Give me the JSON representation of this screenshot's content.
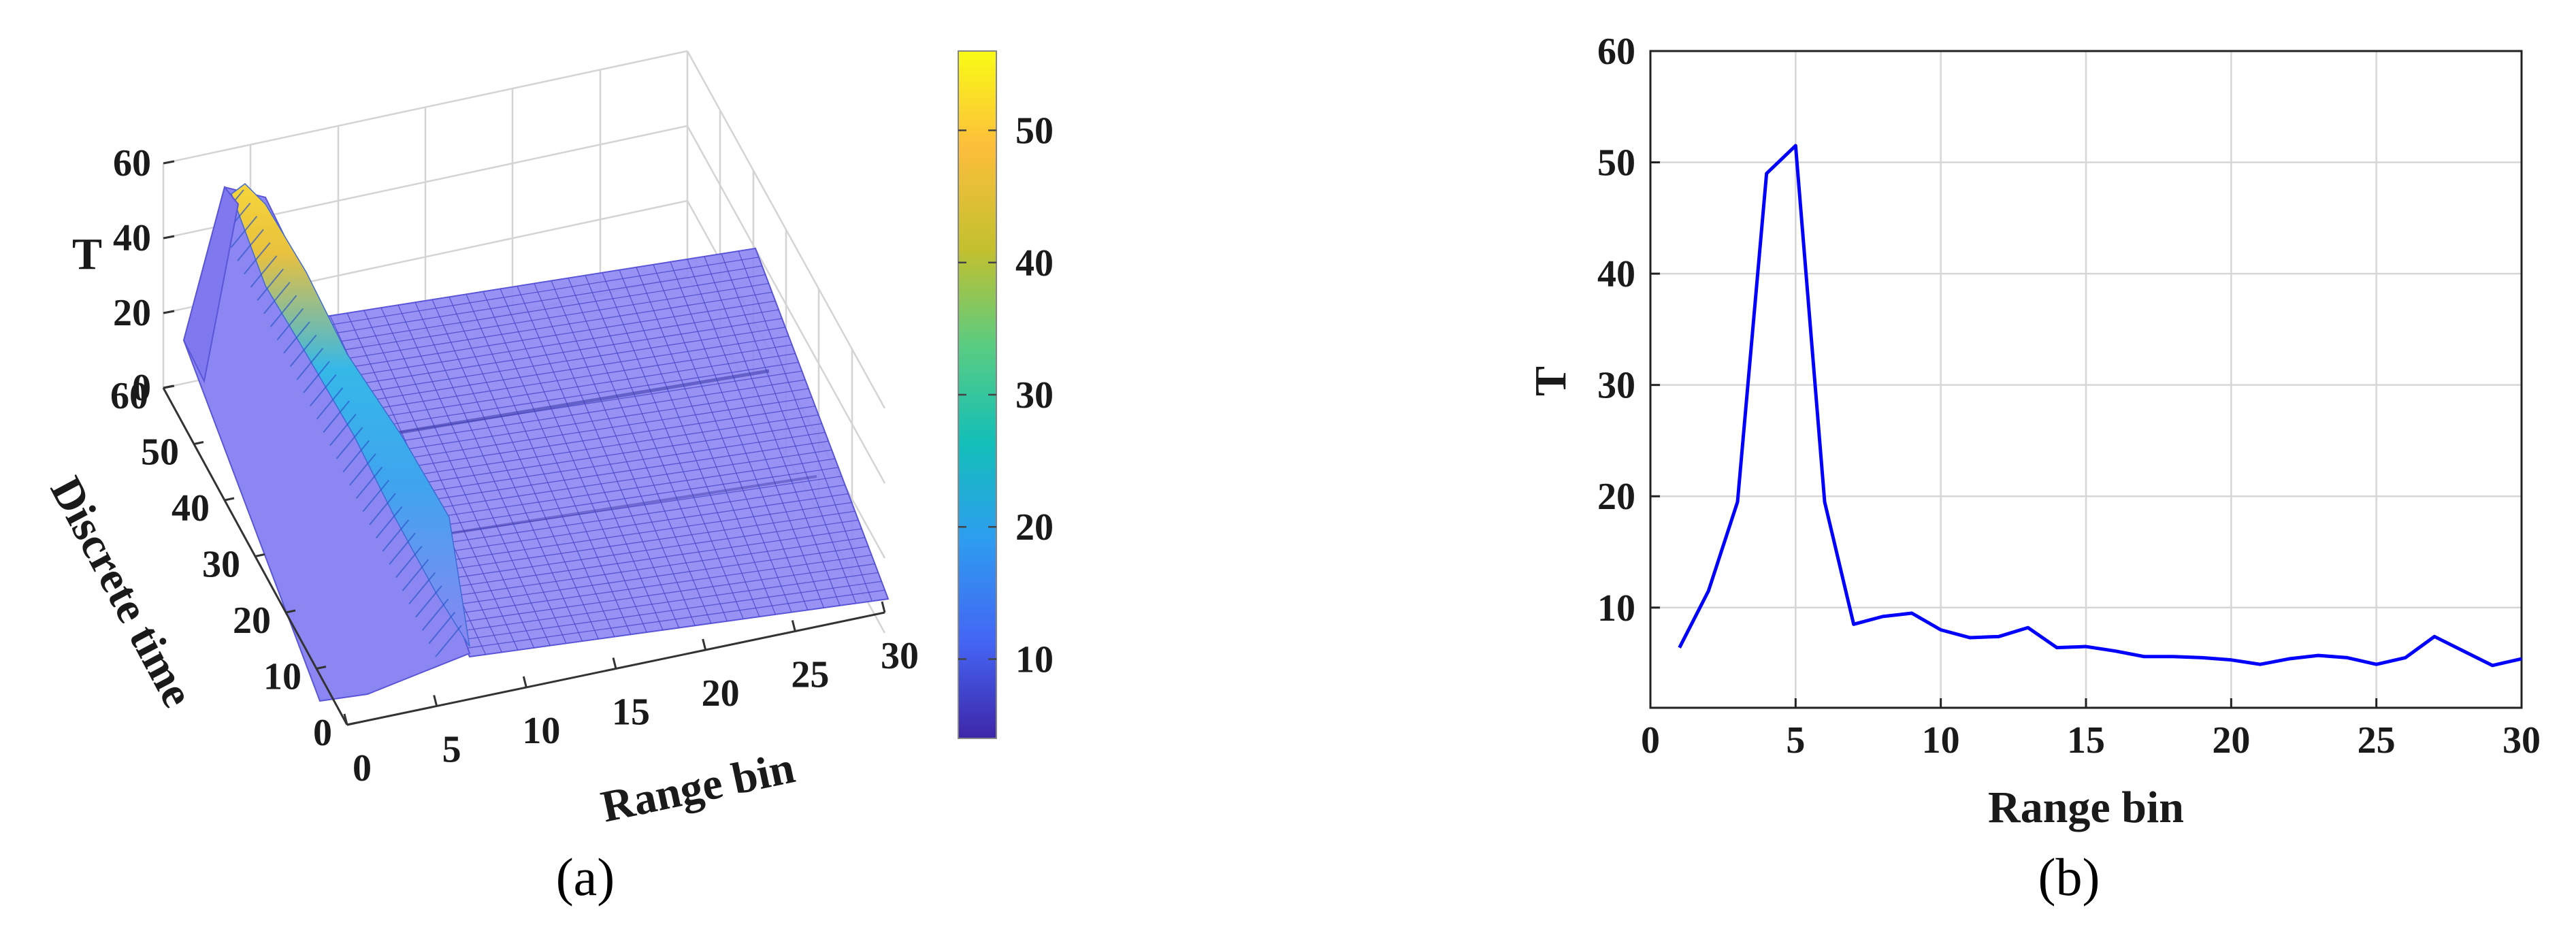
{
  "panels": [
    {
      "caption": "(a)"
    },
    {
      "caption": "(b)"
    }
  ],
  "chart_data": [
    {
      "type": "surface",
      "panel": "a",
      "xlabel": "Range bin",
      "ylabel": "Discrete time",
      "zlabel": "T",
      "xlim": [
        0,
        30
      ],
      "ylim": [
        0,
        60
      ],
      "zlim": [
        0,
        60
      ],
      "xticks": [
        "0",
        "5",
        "10",
        "15",
        "20",
        "25",
        "30"
      ],
      "yticks": [
        "0",
        "10",
        "20",
        "30",
        "40",
        "50",
        "60"
      ],
      "zticks": [
        "0",
        "20",
        "40",
        "60"
      ],
      "colorbar": {
        "range": [
          4,
          56
        ],
        "ticks": [
          "10",
          "20",
          "30",
          "40",
          "50"
        ],
        "colormap": "parula",
        "colors": [
          "#3e26a8",
          "#4465f4",
          "#2e9df0",
          "#13bfb8",
          "#59cc82",
          "#c2c02f",
          "#fcbe3c",
          "#f9fb15"
        ]
      },
      "surface_color": "#8c86f2",
      "description_profile": [
        6.4,
        11.5,
        19.5,
        49,
        51.5,
        19.5,
        8.5,
        9.2,
        9.5,
        8,
        7.3,
        7.4,
        8.2,
        6.4,
        6.5,
        6.1,
        5.6,
        5.6,
        5.5,
        5.3,
        4.9,
        5.4,
        5.7,
        5.5,
        4.9,
        5.5,
        7.4,
        6.1,
        4.8,
        5.4
      ]
    },
    {
      "type": "line",
      "panel": "b",
      "xlabel": "Range bin",
      "ylabel": "T",
      "xlim": [
        0,
        30
      ],
      "ylim": [
        1,
        60
      ],
      "xticks": [
        0,
        5,
        10,
        15,
        20,
        25,
        30
      ],
      "yticks": [
        10,
        20,
        30,
        40,
        50,
        60
      ],
      "grid": true,
      "series": [
        {
          "color": "#0000ff",
          "x": [
            1,
            2,
            3,
            4,
            5,
            6,
            7,
            8,
            9,
            10,
            11,
            12,
            13,
            14,
            15,
            16,
            17,
            18,
            19,
            20,
            21,
            22,
            23,
            24,
            25,
            26,
            27,
            28,
            29,
            30
          ],
          "y": [
            6.4,
            11.5,
            19.5,
            49,
            51.5,
            19.5,
            8.5,
            9.2,
            9.5,
            8,
            7.3,
            7.4,
            8.2,
            6.4,
            6.5,
            6.1,
            5.6,
            5.6,
            5.5,
            5.3,
            4.9,
            5.4,
            5.7,
            5.5,
            4.9,
            5.5,
            7.4,
            6.1,
            4.8,
            5.4
          ]
        }
      ]
    }
  ]
}
